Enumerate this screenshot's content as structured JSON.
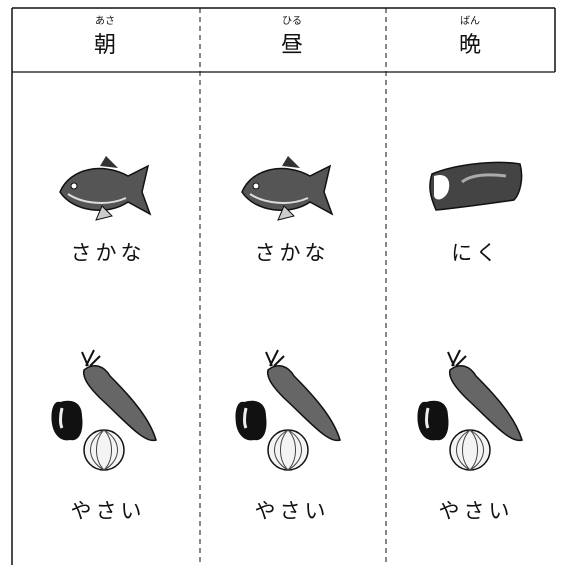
{
  "columns": [
    {
      "ruby": "あさ",
      "heading": "朝",
      "items": [
        "さかな",
        "やさい"
      ]
    },
    {
      "ruby": "ひる",
      "heading": "昼",
      "items": [
        "さかな",
        "やさい"
      ]
    },
    {
      "ruby": "ばん",
      "heading": "晩",
      "items": [
        "にく",
        "やさい"
      ]
    }
  ]
}
